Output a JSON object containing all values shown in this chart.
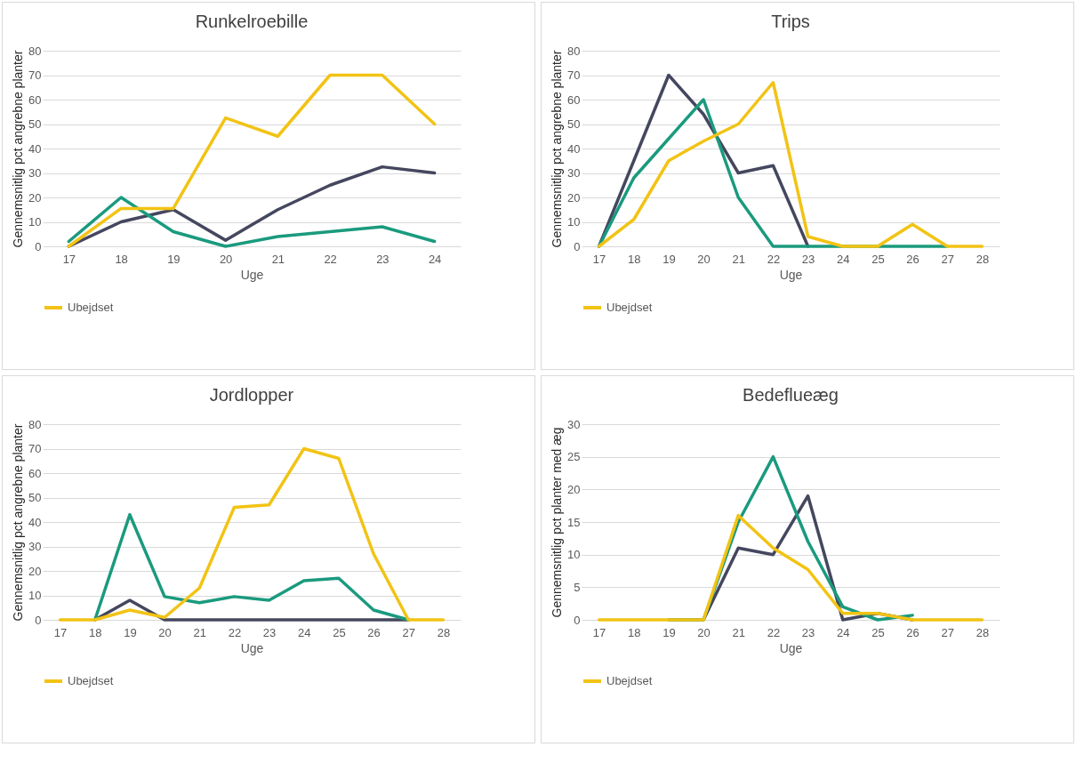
{
  "chart_data": [
    {
      "type": "line",
      "title": "Runkelroebille",
      "xlabel": "Uge",
      "ylabel": "Gennemsnitlig pct angrebne planter",
      "categories": [
        "17",
        "18",
        "19",
        "20",
        "21",
        "22",
        "23",
        "24"
      ],
      "ylim": [
        0,
        80
      ],
      "yticks": [
        0,
        10,
        20,
        30,
        40,
        50,
        60,
        70,
        80
      ],
      "grid": "y",
      "legend": "bottom",
      "series": [
        {
          "color": "#44475e",
          "values": [
            0,
            10,
            15,
            2.5,
            15,
            25,
            32.5,
            30
          ]
        },
        {
          "color": "#1a9a7e",
          "values": [
            2,
            20,
            6,
            0,
            4,
            6,
            8,
            2
          ]
        },
        {
          "name": "Ubejdset",
          "color": "#f2c314",
          "values": [
            0,
            15.5,
            15.5,
            52.5,
            45,
            70,
            70,
            50
          ]
        }
      ]
    },
    {
      "type": "line",
      "title": "Trips",
      "xlabel": "Uge",
      "ylabel": "Gennemsnitlig pct angrebne planter",
      "categories": [
        "17",
        "18",
        "19",
        "20",
        "21",
        "22",
        "23",
        "24",
        "25",
        "26",
        "27",
        "28"
      ],
      "ylim": [
        0,
        80
      ],
      "yticks": [
        0,
        10,
        20,
        30,
        40,
        50,
        60,
        70,
        80
      ],
      "grid": "y",
      "legend": "bottom",
      "series": [
        {
          "color": "#44475e",
          "values": [
            0,
            35,
            70,
            54,
            30,
            33,
            0,
            null,
            null,
            null,
            null,
            null
          ]
        },
        {
          "color": "#1a9a7e",
          "values": [
            0,
            28,
            44,
            60,
            20,
            0,
            0,
            0,
            0,
            0,
            0,
            null
          ]
        },
        {
          "name": "Ubejdset",
          "color": "#f2c314",
          "values": [
            0,
            11,
            35,
            43,
            50,
            67,
            4,
            0,
            0,
            9,
            0,
            0
          ]
        }
      ]
    },
    {
      "type": "line",
      "title": "Jordlopper",
      "xlabel": "Uge",
      "ylabel": "Gennemsnitlig pct angrebne planter",
      "categories": [
        "17",
        "18",
        "19",
        "20",
        "21",
        "22",
        "23",
        "24",
        "25",
        "26",
        "27",
        "28"
      ],
      "ylim": [
        0,
        80
      ],
      "yticks": [
        0,
        10,
        20,
        30,
        40,
        50,
        60,
        70,
        80
      ],
      "grid": "y",
      "legend": "bottom",
      "series": [
        {
          "color": "#44475e",
          "values": [
            null,
            0,
            8,
            0,
            0,
            0,
            0,
            0,
            0,
            0,
            0,
            null
          ]
        },
        {
          "color": "#1a9a7e",
          "values": [
            null,
            0,
            43,
            9.5,
            7,
            9.5,
            8,
            16,
            17,
            4,
            0,
            null
          ]
        },
        {
          "name": "Ubejdset",
          "color": "#f2c314",
          "values": [
            0,
            0,
            4,
            1,
            13,
            46,
            47,
            70,
            66,
            27,
            0,
            0
          ]
        }
      ]
    },
    {
      "type": "line",
      "title": "Bedeflueæg",
      "xlabel": "Uge",
      "ylabel": "Gennemsnitlig pct planter med æg",
      "categories": [
        "17",
        "18",
        "19",
        "20",
        "21",
        "22",
        "23",
        "24",
        "25",
        "26",
        "27",
        "28"
      ],
      "ylim": [
        0,
        30
      ],
      "yticks": [
        0,
        5,
        10,
        15,
        20,
        25,
        30
      ],
      "grid": "y",
      "legend": "bottom",
      "series": [
        {
          "color": "#44475e",
          "values": [
            null,
            null,
            0,
            0,
            11,
            10,
            19,
            0,
            1,
            0,
            null,
            null
          ]
        },
        {
          "color": "#1a9a7e",
          "values": [
            null,
            null,
            0,
            0,
            15,
            25,
            12,
            2,
            0,
            0.7,
            null,
            null
          ]
        },
        {
          "name": "Ubejdset",
          "color": "#f2c314",
          "values": [
            0,
            0,
            0,
            0,
            16,
            11,
            7.7,
            1,
            1,
            0,
            0,
            0
          ]
        }
      ]
    }
  ]
}
